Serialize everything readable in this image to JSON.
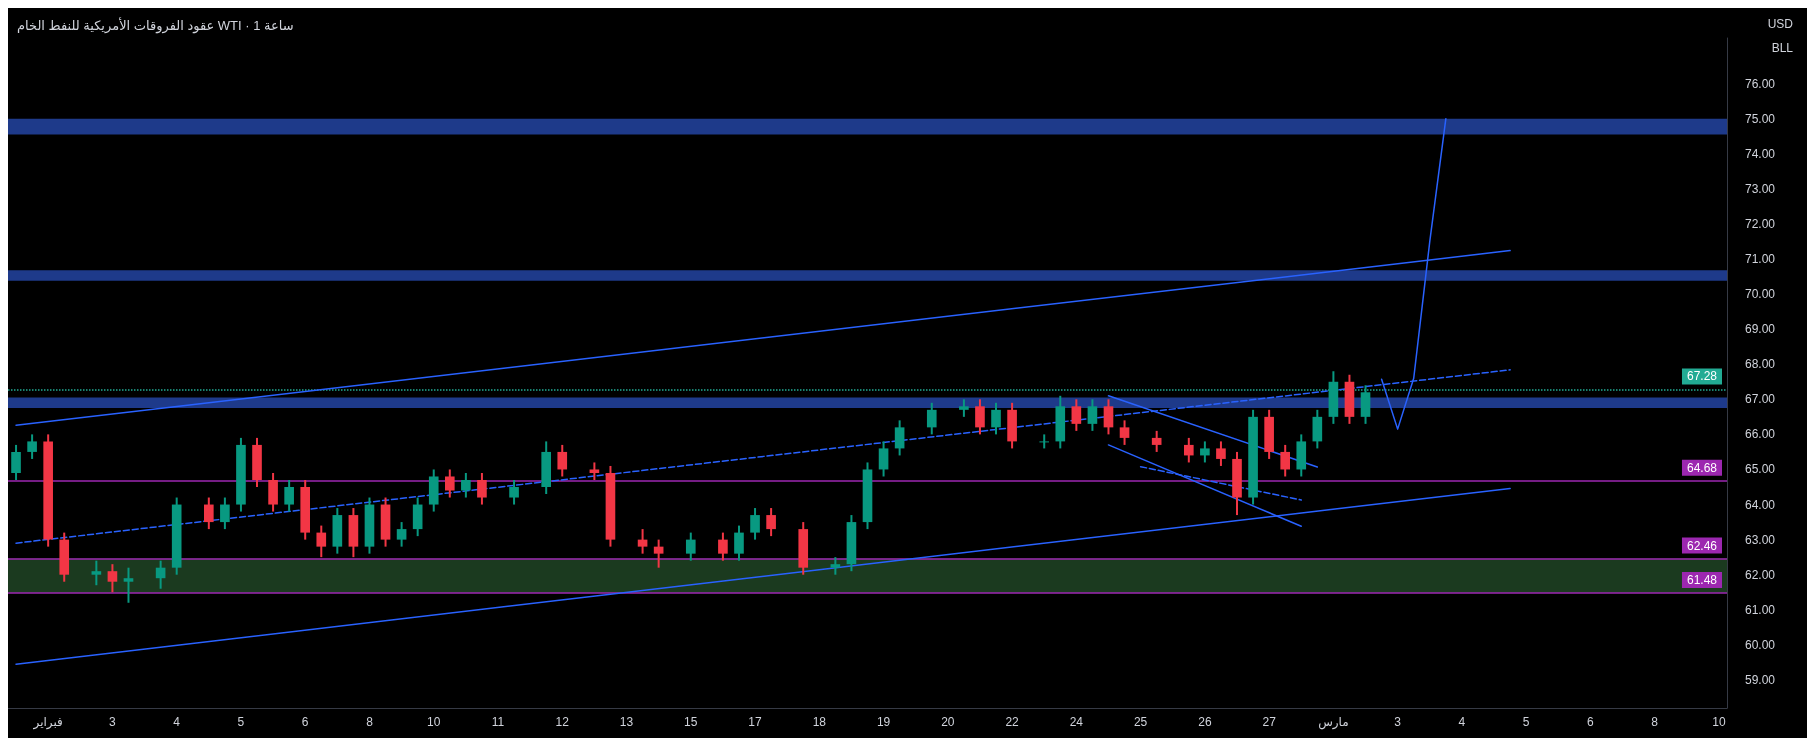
{
  "chart_data": {
    "type": "candlestick",
    "title": "عقود الفروقات الأمريكية للنفط الخام WTI · 1 ساعة",
    "annotations": [
      "USD",
      "BLL"
    ],
    "categories": [
      null,
      null,
      "فبراير",
      null,
      null,
      null,
      "3",
      null,
      null,
      null,
      "4",
      null,
      null,
      null,
      "5",
      null,
      null,
      null,
      "6",
      null,
      null,
      null,
      "8",
      null,
      null,
      null,
      "10",
      null,
      null,
      null,
      "11",
      null,
      null,
      null,
      "12",
      null,
      null,
      null,
      "13",
      null,
      null,
      null,
      "15",
      null,
      null,
      null,
      "17",
      null,
      null,
      null,
      "18",
      null,
      null,
      null,
      "19",
      null,
      null,
      null,
      "20",
      null,
      null,
      null,
      "22",
      null,
      null,
      null,
      "24",
      null,
      null,
      null,
      "25",
      null,
      null,
      null,
      "26",
      null,
      null,
      null,
      "27",
      null,
      null,
      null,
      "مارس",
      null,
      null,
      null,
      "3",
      null,
      null,
      null,
      "4",
      null,
      null,
      null,
      "5",
      null,
      null,
      null,
      "6",
      null,
      null,
      null,
      "8",
      null,
      null,
      null,
      "10"
    ],
    "ohlc": [
      [
        64.9,
        65.7,
        64.7,
        65.5
      ],
      [
        65.5,
        66.0,
        65.3,
        65.8
      ],
      [
        65.8,
        66.0,
        62.8,
        63.0
      ],
      [
        63.0,
        63.2,
        61.8,
        62.0
      ],
      null,
      [
        62.0,
        62.4,
        61.7,
        62.1
      ],
      [
        62.1,
        62.3,
        61.5,
        61.8
      ],
      [
        61.8,
        62.2,
        61.2,
        61.9
      ],
      null,
      [
        61.9,
        62.4,
        61.6,
        62.2
      ],
      [
        62.2,
        64.2,
        62.0,
        64.0
      ],
      null,
      [
        64.0,
        64.2,
        63.3,
        63.5
      ],
      [
        63.5,
        64.2,
        63.3,
        64.0
      ],
      [
        64.0,
        65.9,
        63.8,
        65.7
      ],
      [
        65.7,
        65.9,
        64.5,
        64.7
      ],
      [
        64.7,
        64.9,
        63.8,
        64.0
      ],
      [
        64.0,
        64.7,
        63.8,
        64.5
      ],
      [
        64.5,
        64.7,
        63.0,
        63.2
      ],
      [
        63.2,
        63.4,
        62.5,
        62.8
      ],
      [
        62.8,
        63.9,
        62.6,
        63.7
      ],
      [
        63.7,
        63.9,
        62.5,
        62.8
      ],
      [
        62.8,
        64.2,
        62.6,
        64.0
      ],
      [
        64.0,
        64.2,
        62.8,
        63.0
      ],
      [
        63.0,
        63.5,
        62.8,
        63.3
      ],
      [
        63.3,
        64.2,
        63.1,
        64.0
      ],
      [
        64.0,
        65.0,
        63.8,
        64.8
      ],
      [
        64.8,
        65.0,
        64.2,
        64.4
      ],
      [
        64.4,
        64.9,
        64.2,
        64.7
      ],
      [
        64.7,
        64.9,
        64.0,
        64.2
      ],
      null,
      [
        64.2,
        64.7,
        64.0,
        64.5
      ],
      null,
      [
        64.5,
        65.8,
        64.3,
        65.5
      ],
      [
        65.5,
        65.7,
        64.8,
        65.0
      ],
      null,
      [
        65.0,
        65.2,
        64.7,
        64.9
      ],
      [
        64.9,
        65.1,
        62.8,
        63.0
      ],
      null,
      [
        63.0,
        63.3,
        62.6,
        62.8
      ],
      [
        62.8,
        63.0,
        62.2,
        62.6
      ],
      null,
      [
        62.6,
        63.2,
        62.4,
        63.0
      ],
      null,
      [
        63.0,
        63.2,
        62.4,
        62.6
      ],
      [
        62.6,
        63.4,
        62.4,
        63.2
      ],
      [
        63.2,
        63.9,
        63.0,
        63.7
      ],
      [
        63.7,
        63.9,
        63.1,
        63.3
      ],
      null,
      [
        63.3,
        63.5,
        62.0,
        62.2
      ],
      null,
      [
        62.2,
        62.5,
        62.0,
        62.3
      ],
      [
        62.3,
        63.7,
        62.1,
        63.5
      ],
      [
        63.5,
        65.2,
        63.3,
        65.0
      ],
      [
        65.0,
        65.8,
        64.8,
        65.6
      ],
      [
        65.6,
        66.4,
        65.4,
        66.2
      ],
      null,
      [
        66.2,
        66.9,
        66.0,
        66.7
      ],
      null,
      [
        66.7,
        67.0,
        66.5,
        66.8
      ],
      [
        66.8,
        67.0,
        66.0,
        66.2
      ],
      [
        66.2,
        66.9,
        66.0,
        66.7
      ],
      [
        66.7,
        66.9,
        65.6,
        65.8
      ],
      null,
      [
        65.8,
        66.0,
        65.6,
        65.8
      ],
      [
        65.8,
        67.1,
        65.6,
        66.8
      ],
      [
        66.8,
        67.0,
        66.1,
        66.3
      ],
      [
        66.3,
        67.0,
        66.1,
        66.8
      ],
      [
        66.8,
        67.0,
        66.0,
        66.2
      ],
      [
        66.2,
        66.4,
        65.7,
        65.9
      ],
      null,
      [
        65.9,
        66.1,
        65.5,
        65.7
      ],
      null,
      [
        65.7,
        65.9,
        65.2,
        65.4
      ],
      [
        65.4,
        65.8,
        65.2,
        65.6
      ],
      [
        65.6,
        65.8,
        65.1,
        65.3
      ],
      [
        65.3,
        65.5,
        63.7,
        64.2
      ],
      [
        64.2,
        66.7,
        64.0,
        66.5
      ],
      [
        66.5,
        66.7,
        65.3,
        65.5
      ],
      [
        65.5,
        65.7,
        64.8,
        65.0
      ],
      [
        65.0,
        66.0,
        64.8,
        65.8
      ],
      [
        65.8,
        66.7,
        65.6,
        66.5
      ],
      [
        66.5,
        67.8,
        66.3,
        67.5
      ],
      [
        67.5,
        67.7,
        66.3,
        66.5
      ],
      [
        66.5,
        67.4,
        66.3,
        67.2
      ],
      null,
      null,
      null,
      null,
      null,
      null,
      null,
      null,
      null,
      null,
      null,
      null,
      null,
      null,
      null,
      null,
      null,
      null,
      null,
      null,
      null,
      null
    ],
    "series": [
      {
        "type": "line",
        "color": "#2962ff",
        "values": [
          66.26,
          null,
          null,
          null,
          null,
          null,
          null,
          null,
          null,
          null,
          null,
          null,
          null,
          null,
          null,
          null,
          null,
          null,
          null,
          null,
          null,
          null,
          null,
          null,
          null,
          null,
          null,
          null,
          null,
          null,
          null,
          null,
          null,
          null,
          null,
          null,
          null,
          null,
          null,
          null,
          null,
          null,
          null,
          null,
          null,
          null,
          null,
          null,
          null,
          null,
          null,
          null,
          null,
          null,
          null,
          null,
          null,
          null,
          null,
          null,
          null,
          null,
          null,
          null,
          null,
          null,
          null,
          null,
          null,
          null,
          null,
          null,
          null,
          null,
          null,
          null,
          null,
          null,
          null,
          null,
          null,
          null,
          null,
          null,
          null,
          null,
          null,
          null,
          null,
          null,
          null,
          null,
          null,
          71.24,
          null,
          null,
          null,
          null,
          null,
          null,
          null,
          null,
          null,
          null,
          null,
          null,
          null
        ]
      },
      {
        "type": "line",
        "color": "#2962ff",
        "values": [
          59.45,
          null,
          null,
          null,
          null,
          null,
          null,
          null,
          null,
          null,
          null,
          null,
          null,
          null,
          null,
          null,
          null,
          null,
          null,
          null,
          null,
          null,
          null,
          null,
          null,
          null,
          null,
          null,
          null,
          null,
          null,
          null,
          null,
          null,
          null,
          null,
          null,
          null,
          null,
          null,
          null,
          null,
          null,
          null,
          null,
          null,
          null,
          null,
          null,
          null,
          null,
          null,
          null,
          null,
          null,
          null,
          null,
          null,
          null,
          null,
          null,
          null,
          null,
          null,
          null,
          null,
          null,
          null,
          null,
          null,
          null,
          null,
          null,
          null,
          null,
          null,
          null,
          null,
          null,
          null,
          null,
          null,
          null,
          null,
          null,
          null,
          null,
          null,
          null,
          null,
          null,
          null,
          null,
          64.46,
          null,
          null,
          null,
          null,
          null,
          null,
          null,
          null,
          null,
          null,
          null,
          null,
          null
        ]
      },
      {
        "type": "line",
        "color": "#2962ff",
        "line_style": "dashed",
        "values": [
          62.9,
          null,
          null,
          null,
          null,
          null,
          null,
          null,
          null,
          null,
          null,
          null,
          null,
          null,
          null,
          null,
          null,
          null,
          null,
          null,
          null,
          null,
          null,
          null,
          null,
          null,
          null,
          null,
          null,
          null,
          null,
          null,
          null,
          null,
          null,
          null,
          null,
          null,
          null,
          null,
          null,
          null,
          null,
          null,
          null,
          null,
          null,
          null,
          null,
          null,
          null,
          null,
          null,
          null,
          null,
          null,
          null,
          null,
          null,
          null,
          null,
          null,
          null,
          null,
          null,
          null,
          null,
          null,
          null,
          null,
          null,
          null,
          null,
          null,
          null,
          null,
          null,
          null,
          null,
          null,
          null,
          null,
          null,
          null,
          null,
          null,
          null,
          null,
          null,
          null,
          null,
          null,
          null,
          67.84,
          null,
          null,
          null,
          null,
          null,
          null,
          null,
          null,
          null,
          null,
          null,
          null,
          null
        ]
      },
      {
        "type": "line",
        "color": "#2962ff",
        "values": [
          null,
          null,
          null,
          null,
          null,
          null,
          null,
          null,
          null,
          null,
          null,
          null,
          null,
          null,
          null,
          null,
          null,
          null,
          null,
          null,
          null,
          null,
          null,
          null,
          null,
          null,
          null,
          null,
          null,
          null,
          null,
          null,
          null,
          null,
          null,
          null,
          null,
          null,
          null,
          null,
          null,
          null,
          null,
          null,
          null,
          null,
          null,
          null,
          null,
          null,
          null,
          null,
          null,
          null,
          null,
          null,
          null,
          null,
          null,
          null,
          null,
          null,
          null,
          null,
          null,
          null,
          null,
          null,
          67.1,
          null,
          null,
          null,
          null,
          null,
          null,
          null,
          null,
          null,
          null,
          null,
          null,
          65.07,
          null,
          null,
          null,
          null,
          null,
          null,
          null,
          null,
          null,
          null,
          null,
          null,
          null,
          null,
          null,
          null,
          null,
          null,
          null,
          null,
          null,
          null,
          null,
          null,
          null
        ]
      },
      {
        "type": "line",
        "color": "#2962ff",
        "values": [
          null,
          null,
          null,
          null,
          null,
          null,
          null,
          null,
          null,
          null,
          null,
          null,
          null,
          null,
          null,
          null,
          null,
          null,
          null,
          null,
          null,
          null,
          null,
          null,
          null,
          null,
          null,
          null,
          null,
          null,
          null,
          null,
          null,
          null,
          null,
          null,
          null,
          null,
          null,
          null,
          null,
          null,
          null,
          null,
          null,
          null,
          null,
          null,
          null,
          null,
          null,
          null,
          null,
          null,
          null,
          null,
          null,
          null,
          null,
          null,
          null,
          null,
          null,
          null,
          null,
          null,
          null,
          null,
          65.7,
          null,
          null,
          null,
          null,
          null,
          null,
          null,
          null,
          null,
          null,
          null,
          63.38,
          null,
          null,
          null,
          null,
          null,
          null,
          null,
          null,
          null,
          null,
          null,
          null,
          null,
          null,
          null,
          null,
          null,
          null,
          null,
          null,
          null,
          null,
          null,
          null,
          null,
          null
        ]
      },
      {
        "type": "line",
        "color": "#2962ff",
        "line_style": "dashed",
        "values": [
          null,
          null,
          null,
          null,
          null,
          null,
          null,
          null,
          null,
          null,
          null,
          null,
          null,
          null,
          null,
          null,
          null,
          null,
          null,
          null,
          null,
          null,
          null,
          null,
          null,
          null,
          null,
          null,
          null,
          null,
          null,
          null,
          null,
          null,
          null,
          null,
          null,
          null,
          null,
          null,
          null,
          null,
          null,
          null,
          null,
          null,
          null,
          null,
          null,
          null,
          null,
          null,
          null,
          null,
          null,
          null,
          null,
          null,
          null,
          null,
          null,
          null,
          null,
          null,
          null,
          null,
          null,
          null,
          null,
          null,
          65.08,
          null,
          null,
          null,
          null,
          null,
          null,
          null,
          null,
          null,
          64.13,
          null,
          null,
          null,
          null,
          null,
          null,
          null,
          null,
          null,
          null,
          null,
          null,
          null,
          null,
          null,
          null,
          null,
          null,
          null,
          null,
          null,
          null,
          null,
          null,
          null,
          null
        ]
      },
      {
        "type": "line",
        "color": "#2962ff",
        "values": [
          null,
          null,
          null,
          null,
          null,
          null,
          null,
          null,
          null,
          null,
          null,
          null,
          null,
          null,
          null,
          null,
          null,
          null,
          null,
          null,
          null,
          null,
          null,
          null,
          null,
          null,
          null,
          null,
          null,
          null,
          null,
          null,
          null,
          null,
          null,
          null,
          null,
          null,
          null,
          null,
          null,
          null,
          null,
          null,
          null,
          null,
          null,
          null,
          null,
          null,
          null,
          null,
          null,
          null,
          null,
          null,
          null,
          null,
          null,
          null,
          null,
          null,
          null,
          null,
          null,
          null,
          null,
          null,
          null,
          null,
          null,
          null,
          null,
          null,
          null,
          null,
          null,
          null,
          null,
          null,
          null,
          null,
          null,
          null,
          null,
          67.57,
          66.15,
          67.6,
          71.5,
          75.0,
          null,
          null,
          null,
          null,
          null,
          null,
          null,
          null,
          null,
          null,
          null,
          null,
          null,
          null,
          null,
          null,
          null
        ]
      }
    ],
    "bands": [
      {
        "axis": "y",
        "from": 74.55,
        "to": 75.0,
        "color": "#1e3a8a"
      },
      {
        "axis": "y",
        "from": 70.38,
        "to": 70.68,
        "color": "#1e3a8a"
      },
      {
        "axis": "y",
        "from": 66.75,
        "to": 67.05,
        "color": "#1e3a8a"
      },
      {
        "axis": "y",
        "from": 61.48,
        "to": 62.46,
        "color": "#1b3a1f"
      }
    ],
    "ref_lines": [
      {
        "axis": "y",
        "value": 67.28,
        "label": "67.28",
        "color": "#22ab94",
        "line_style": "dotted"
      },
      {
        "axis": "y",
        "value": 64.68,
        "label": "64.68",
        "color": "#9c27b0"
      },
      {
        "axis": "y",
        "value": 62.46,
        "label": "62.46",
        "color": "#9c27b0"
      },
      {
        "axis": "y",
        "value": 61.48,
        "label": "61.48",
        "color": "#9c27b0"
      }
    ],
    "ylim": [
      58.2,
      77.3
    ],
    "yticks": [
      {
        "value": 59,
        "label": "59.00"
      },
      {
        "value": 60,
        "label": "60.00"
      },
      {
        "value": 61,
        "label": "61.00"
      },
      {
        "value": 62,
        "label": "62.00"
      },
      {
        "value": 63,
        "label": "63.00"
      },
      {
        "value": 64,
        "label": "64.00"
      },
      {
        "value": 65,
        "label": "65.00"
      },
      {
        "value": 66,
        "label": "66.00"
      },
      {
        "value": 67,
        "label": "67.00"
      },
      {
        "value": 68,
        "label": "68.00"
      },
      {
        "value": 69,
        "label": "69.00"
      },
      {
        "value": 70,
        "label": "70.00"
      },
      {
        "value": 71,
        "label": "71.00"
      },
      {
        "value": 72,
        "label": "72.00"
      },
      {
        "value": 73,
        "label": "73.00"
      },
      {
        "value": 74,
        "label": "74.00"
      },
      {
        "value": 75,
        "label": "75.00"
      },
      {
        "value": 76,
        "label": "76.00"
      }
    ],
    "grid": false
  }
}
